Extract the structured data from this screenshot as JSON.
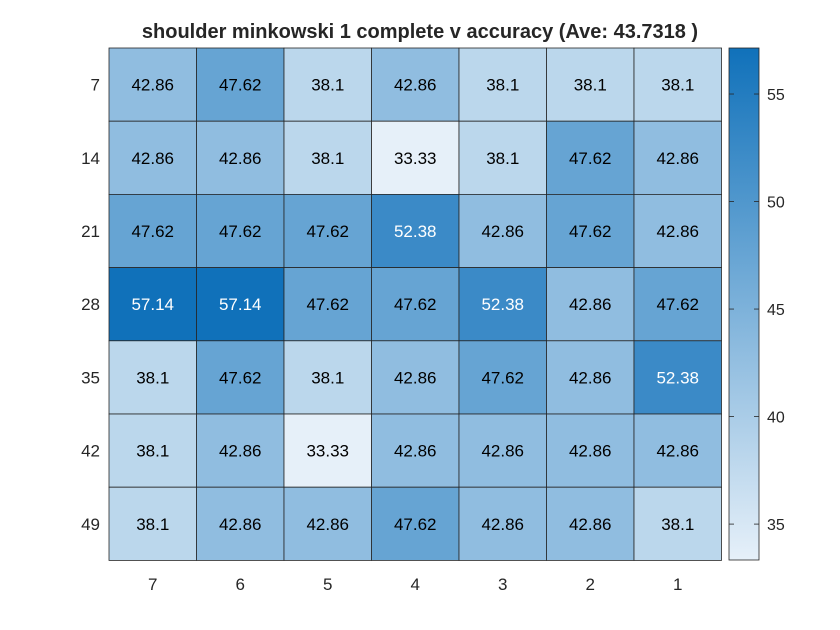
{
  "chart_data": {
    "type": "heatmap",
    "title": "shoulder minkowski 1 complete v accuracy (Ave:  43.7318 )",
    "x_categories": [
      "7",
      "6",
      "5",
      "4",
      "3",
      "2",
      "1"
    ],
    "y_categories": [
      "7",
      "14",
      "21",
      "28",
      "35",
      "42",
      "49"
    ],
    "values": [
      [
        42.86,
        47.62,
        38.1,
        42.86,
        38.1,
        38.1,
        38.1
      ],
      [
        42.86,
        42.86,
        38.1,
        33.33,
        38.1,
        47.62,
        42.86
      ],
      [
        47.62,
        47.62,
        47.62,
        52.38,
        42.86,
        47.62,
        42.86
      ],
      [
        57.14,
        57.14,
        47.62,
        47.62,
        52.38,
        42.86,
        47.62
      ],
      [
        38.1,
        47.62,
        38.1,
        42.86,
        47.62,
        42.86,
        52.38
      ],
      [
        38.1,
        42.86,
        33.33,
        42.86,
        42.86,
        42.86,
        42.86
      ],
      [
        38.1,
        42.86,
        42.86,
        47.62,
        42.86,
        42.86,
        38.1
      ]
    ],
    "value_labels": [
      [
        "42.86",
        "47.62",
        "38.1",
        "42.86",
        "38.1",
        "38.1",
        "38.1"
      ],
      [
        "42.86",
        "42.86",
        "38.1",
        "33.33",
        "38.1",
        "47.62",
        "42.86"
      ],
      [
        "47.62",
        "47.62",
        "47.62",
        "52.38",
        "42.86",
        "47.62",
        "42.86"
      ],
      [
        "57.14",
        "57.14",
        "47.62",
        "47.62",
        "52.38",
        "42.86",
        "47.62"
      ],
      [
        "38.1",
        "47.62",
        "38.1",
        "42.86",
        "47.62",
        "42.86",
        "52.38"
      ],
      [
        "38.1",
        "42.86",
        "33.33",
        "42.86",
        "42.86",
        "42.86",
        "42.86"
      ],
      [
        "38.1",
        "42.86",
        "42.86",
        "47.62",
        "42.86",
        "42.86",
        "38.1"
      ]
    ],
    "colorbar": {
      "min": 33.33,
      "max": 57.14,
      "ticks": [
        35,
        40,
        45,
        50,
        55
      ],
      "tick_labels": [
        "35",
        "40",
        "45",
        "50",
        "55"
      ],
      "low_color": "#e6f0f9",
      "high_color": "#1071ba"
    },
    "text_light_threshold": 50,
    "text_color_dark": "#000000",
    "text_color_light": "#ffffff",
    "grid": true
  }
}
